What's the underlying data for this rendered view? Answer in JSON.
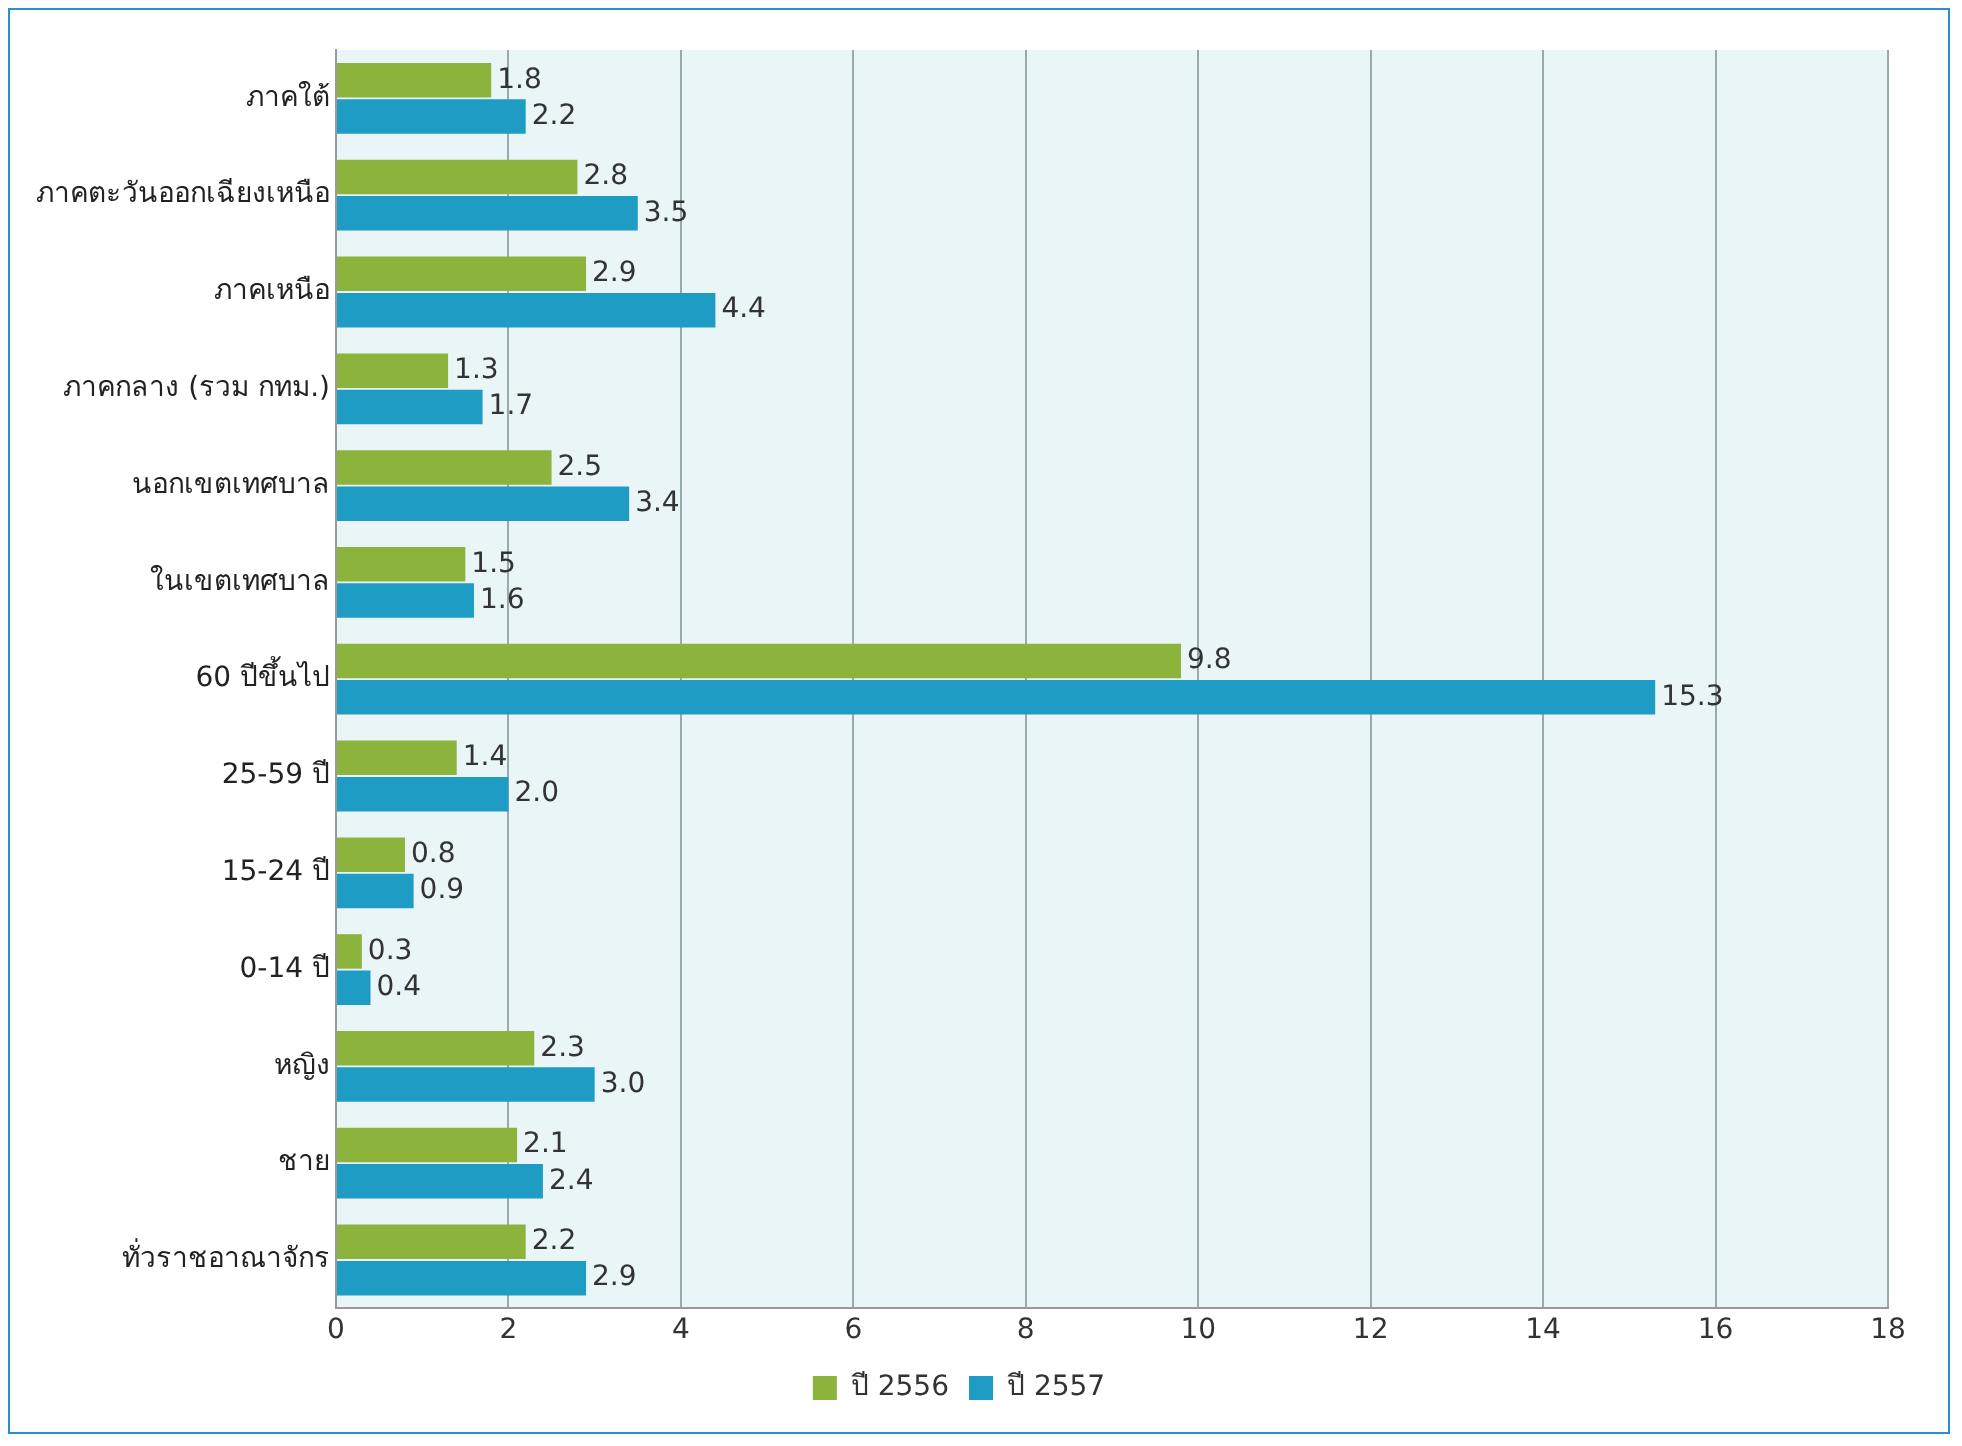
{
  "chart_data": {
    "type": "bar",
    "orientation": "horizontal",
    "categories": [
      "ภาคใต้",
      "ภาคตะวันออกเฉียงเหนือ",
      "ภาคเหนือ",
      "ภาคกลาง (รวม กทม.)",
      "นอกเขตเทศบาล",
      "ในเขตเทศบาล",
      "60 ปีขึ้นไป",
      "25-59 ปี",
      "15-24 ปี",
      "0-14 ปี",
      "หญิง",
      "ชาย",
      "ทั่วราชอาณาจักร"
    ],
    "series": [
      {
        "name": "ปี 2556",
        "color": "#8cb43c",
        "values": [
          1.8,
          2.8,
          2.9,
          1.3,
          2.5,
          1.5,
          9.8,
          1.4,
          0.8,
          0.3,
          2.3,
          2.1,
          2.2
        ],
        "value_labels": [
          "1.8",
          "2.8",
          "2.9",
          "1.3",
          "2.5",
          "1.5",
          "9.8",
          "1.4",
          "0.8",
          "0.3",
          "2.3",
          "2.1",
          "2.2"
        ]
      },
      {
        "name": "ปี 2557",
        "color": "#1f9cc4",
        "values": [
          2.2,
          3.5,
          4.4,
          1.7,
          3.4,
          1.6,
          15.3,
          2.0,
          0.9,
          0.4,
          3.0,
          2.4,
          2.9
        ],
        "value_labels": [
          "2.2",
          "3.5",
          "4.4",
          "1.7",
          "3.4",
          "1.6",
          "15.3",
          "2.0",
          "0.9",
          "0.4",
          "3.0",
          "2.4",
          "2.9"
        ]
      }
    ],
    "xlim": [
      0,
      18
    ],
    "xticks": [
      0,
      2,
      4,
      6,
      8,
      10,
      12,
      14,
      16,
      18
    ],
    "grid": "x",
    "legend": "bottom"
  }
}
